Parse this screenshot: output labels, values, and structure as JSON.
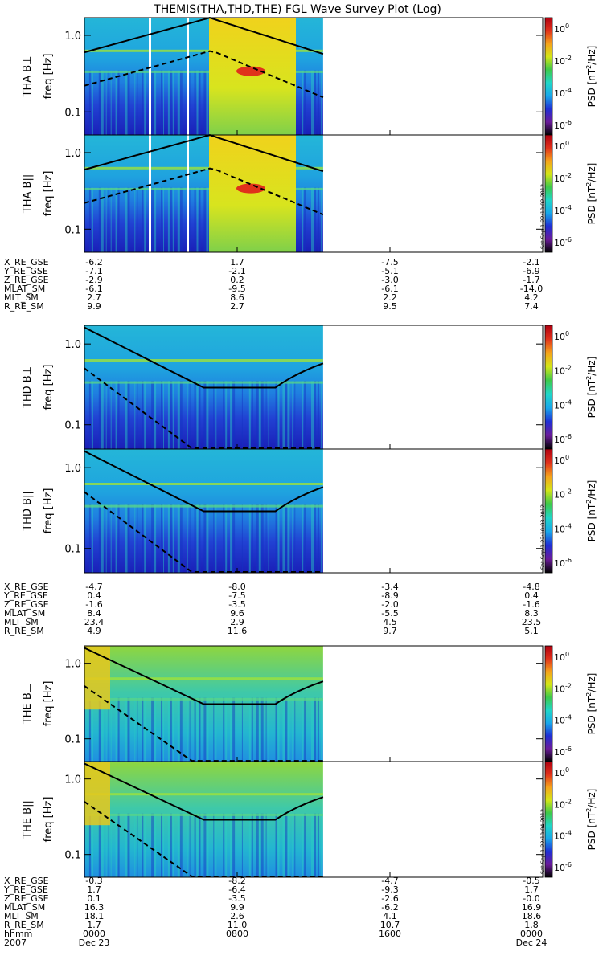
{
  "chart_data": {
    "type": "heatmap",
    "title": "THEMIS(THA,THD,THE) FGL Wave Survey Plot (Log)",
    "x_axis": {
      "label_rows": [
        "hhmm",
        "2007"
      ],
      "ticks": [
        {
          "hhmm": "0000",
          "date": "Dec 23",
          "hours": 0
        },
        {
          "hhmm": "0800",
          "date": "",
          "hours": 8
        },
        {
          "hhmm": "1600",
          "date": "",
          "hours": 16
        },
        {
          "hhmm": "0000",
          "date": "Dec 24",
          "hours": 24
        }
      ],
      "range_hours": [
        0,
        24
      ],
      "data_coverage_hours": [
        0,
        12.5
      ]
    },
    "y_axis": {
      "label": "freq [Hz]",
      "scale": "log",
      "range": [
        0.05,
        1.7
      ],
      "ticks": [
        "0.1",
        "1.0"
      ]
    },
    "colorbar": {
      "label": "PSD [nT²/Hz]",
      "label_base": "PSD [nT",
      "label_sup": "2",
      "label_tail": "/Hz]",
      "scale": "log",
      "ticks": [
        {
          "base": "10",
          "exp": "0"
        },
        {
          "base": "10",
          "exp": "-2"
        },
        {
          "base": "10",
          "exp": "-4"
        },
        {
          "base": "10",
          "exp": "-6"
        }
      ],
      "colors": [
        "#000000",
        "#6a1b9a",
        "#1f2fd4",
        "#18a7ea",
        "#20d6c8",
        "#3ec94a",
        "#d4e617",
        "#f5a21b",
        "#e0311b",
        "#b00010"
      ]
    },
    "probes": [
      {
        "id": "THA",
        "panels": [
          {
            "ylabel": "THA B⊥",
            "dominant": "blue"
          },
          {
            "ylabel": "THA B||",
            "dominant": "blue",
            "stamp": "Sat Sep 1 22:10:02 2012"
          }
        ],
        "orbit_rows": [
          {
            "label": "X_RE_GSE",
            "values": [
              "-6.2",
              "1.7",
              "-7.5",
              "-2.1"
            ]
          },
          {
            "label": "Y_RE_GSE",
            "values": [
              "-7.1",
              "-2.1",
              "-5.1",
              "-6.9"
            ]
          },
          {
            "label": "Z_RE_GSE",
            "values": [
              "-2.9",
              "0.2",
              "-3.0",
              "-1.7"
            ]
          },
          {
            "label": "MLAT_SM",
            "values": [
              "-6.1",
              "-9.5",
              "-6.1",
              "-14.0"
            ]
          },
          {
            "label": "MLT_SM",
            "values": [
              "2.7",
              "8.6",
              "2.2",
              "4.2"
            ]
          },
          {
            "label": "R_RE_SM",
            "values": [
              "9.9",
              "2.7",
              "9.5",
              "7.4"
            ]
          }
        ]
      },
      {
        "id": "THD",
        "panels": [
          {
            "ylabel": "THD B⊥",
            "dominant": "blue"
          },
          {
            "ylabel": "THD B||",
            "dominant": "blue",
            "stamp": "Sat Sep 1 22:10:03 2012"
          }
        ],
        "orbit_rows": [
          {
            "label": "X_RE_GSE",
            "values": [
              "-4.7",
              "-8.0",
              "-3.4",
              "-4.8"
            ]
          },
          {
            "label": "Y_RE_GSE",
            "values": [
              "0.4",
              "-7.5",
              "-8.9",
              "0.4"
            ]
          },
          {
            "label": "Z_RE_GSE",
            "values": [
              "-1.6",
              "-3.5",
              "-2.0",
              "-1.6"
            ]
          },
          {
            "label": "MLAT_SM",
            "values": [
              "8.4",
              "9.6",
              "-5.5",
              "8.3"
            ]
          },
          {
            "label": "MLT_SM",
            "values": [
              "23.4",
              "2.9",
              "4.5",
              "23.5"
            ]
          },
          {
            "label": "R_RE_SM",
            "values": [
              "4.9",
              "11.6",
              "9.7",
              "5.1"
            ]
          }
        ]
      },
      {
        "id": "THE",
        "panels": [
          {
            "ylabel": "THE B⊥",
            "dominant": "green"
          },
          {
            "ylabel": "THE B||",
            "dominant": "green",
            "stamp": "Sat Sep 1 22:10:04 2012"
          }
        ],
        "orbit_rows": [
          {
            "label": "X_RE_GSE",
            "values": [
              "-0.3",
              "-8.2",
              "-4.7",
              "-0.5"
            ]
          },
          {
            "label": "Y_RE_GSE",
            "values": [
              "1.7",
              "-6.4",
              "-9.3",
              "1.7"
            ]
          },
          {
            "label": "Z_RE_GSE",
            "values": [
              "0.1",
              "-3.5",
              "-2.6",
              "-0.0"
            ]
          },
          {
            "label": "MLAT_SM",
            "values": [
              "16.3",
              "9.9",
              "-6.2",
              "16.9"
            ]
          },
          {
            "label": "MLT_SM",
            "values": [
              "18.1",
              "2.6",
              "4.1",
              "18.6"
            ]
          },
          {
            "label": "R_RE_SM",
            "values": [
              "1.7",
              "11.0",
              "10.7",
              "1.8"
            ]
          }
        ]
      }
    ]
  }
}
